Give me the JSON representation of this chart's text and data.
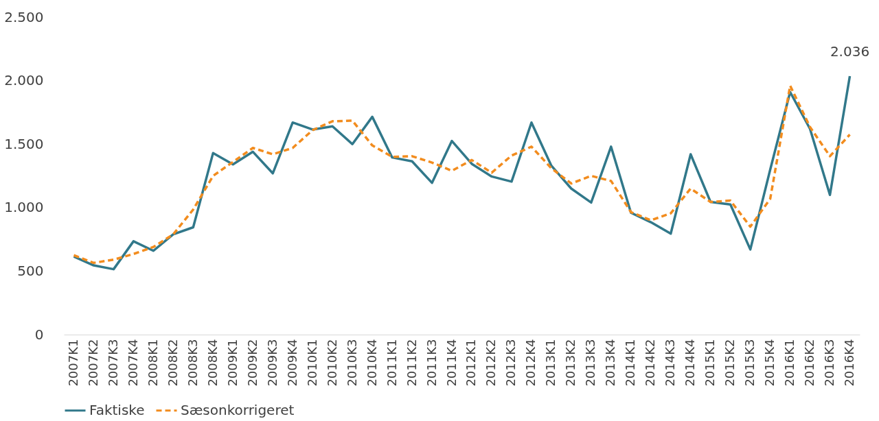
{
  "chart_data": {
    "type": "line",
    "categories": [
      "2007K1",
      "2007K2",
      "2007K3",
      "2007K4",
      "2008K1",
      "2008K2",
      "2008K3",
      "2008K4",
      "2009K1",
      "2009K2",
      "2009K3",
      "2009K4",
      "2010K1",
      "2010K2",
      "2010K3",
      "2010K4",
      "2011K1",
      "2011K2",
      "2011K3",
      "2011K4",
      "2012K1",
      "2012K2",
      "2012K3",
      "2012K4",
      "2013K1",
      "2013K2",
      "2013K3",
      "2013K4",
      "2014K1",
      "2014K2",
      "2014K3",
      "2014K4",
      "2015K1",
      "2015K2",
      "2015K3",
      "2015K4",
      "2016K1",
      "2016K2",
      "2016K3",
      "2016K4"
    ],
    "series": [
      {
        "name": "Faktiske",
        "color": "#31788a",
        "line_style": "solid",
        "values": [
          615,
          545,
          515,
          735,
          660,
          790,
          845,
          1430,
          1340,
          1440,
          1270,
          1670,
          1615,
          1640,
          1500,
          1715,
          1395,
          1365,
          1195,
          1525,
          1345,
          1245,
          1205,
          1670,
          1330,
          1150,
          1040,
          1480,
          960,
          885,
          795,
          1420,
          1045,
          1025,
          670,
          1300,
          1910,
          1620,
          1100,
          2036
        ],
        "value_labels": [
          null,
          null,
          null,
          null,
          null,
          null,
          null,
          null,
          null,
          null,
          null,
          null,
          null,
          null,
          null,
          null,
          null,
          null,
          null,
          null,
          null,
          null,
          null,
          null,
          null,
          null,
          null,
          null,
          null,
          null,
          null,
          null,
          null,
          null,
          null,
          null,
          null,
          null,
          null,
          "2.036"
        ]
      },
      {
        "name": "Sæsonkorrigeret",
        "color": "#f28c1e",
        "line_style": "dashed",
        "values": [
          625,
          565,
          590,
          635,
          690,
          790,
          985,
          1250,
          1360,
          1470,
          1420,
          1470,
          1610,
          1680,
          1685,
          1490,
          1400,
          1405,
          1355,
          1290,
          1375,
          1275,
          1410,
          1480,
          1310,
          1190,
          1250,
          1210,
          965,
          900,
          955,
          1150,
          1045,
          1055,
          850,
          1070,
          1960,
          1635,
          1405,
          1575
        ]
      }
    ],
    "ylim": [
      0,
      2500
    ],
    "yticks": [
      0,
      {
        "value": 500,
        "label": "500"
      },
      {
        "value": 1000,
        "label": "1.000"
      },
      {
        "value": 1500,
        "label": "1.500"
      },
      {
        "value": 2000,
        "label": "2.000"
      },
      {
        "value": 2500,
        "label": "2.500"
      }
    ],
    "grid": false,
    "legend": "bottom"
  }
}
